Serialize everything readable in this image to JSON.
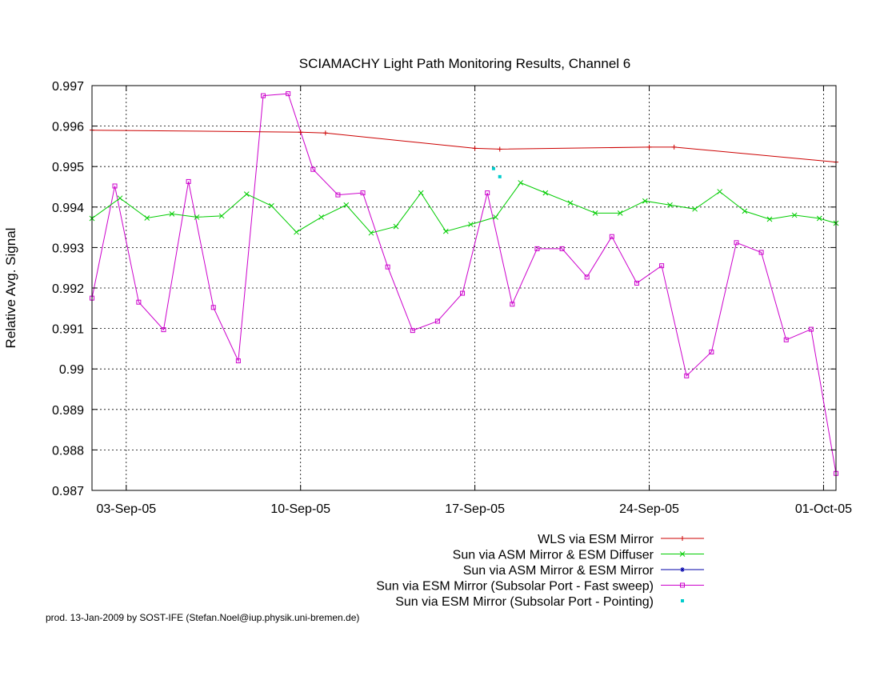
{
  "chart_data": {
    "type": "line",
    "title": "SCIAMACHY Light Path Monitoring Results, Channel 6",
    "ylabel": "Relative Avg. Signal",
    "xlabel": "",
    "ylim": [
      0.987,
      0.997
    ],
    "xlim": [
      "2005-09-01 15:00",
      "2005-10-01 12:00"
    ],
    "grid": true,
    "legend_placement": "below plot, right-aligned",
    "y_ticks": [
      "0.987",
      "0.988",
      "0.989",
      "0.99",
      "0.991",
      "0.992",
      "0.993",
      "0.994",
      "0.995",
      "0.996",
      "0.997"
    ],
    "x_ticks": [
      {
        "value": "2005-09-03",
        "label": "03-Sep-05"
      },
      {
        "value": "2005-09-10",
        "label": "10-Sep-05"
      },
      {
        "value": "2005-09-17",
        "label": "17-Sep-05"
      },
      {
        "value": "2005-09-24",
        "label": "24-Sep-05"
      },
      {
        "value": "2005-10-01",
        "label": "01-Oct-05"
      }
    ],
    "series": [
      {
        "name": "WLS via ESM Mirror",
        "color": "#cc0000",
        "marker": "plus",
        "x": [
          "2005-09-01 15:00",
          "2005-09-10 00:00",
          "2005-09-11 00:00",
          "2005-09-17 00:00",
          "2005-09-18 00:00",
          "2005-09-24 00:00",
          "2005-09-25 00:00",
          "2005-10-01 12:00"
        ],
        "values": [
          0.9959,
          0.99585,
          0.99583,
          0.99545,
          0.99543,
          0.99548,
          0.99548,
          0.99511
        ]
      },
      {
        "name": "Sun via ASM Mirror & ESM Diffuser",
        "color": "#00cc00",
        "marker": "x",
        "x": [
          "2005-09-01 15:00",
          "2005-09-02 18:00",
          "2005-09-03 20:00",
          "2005-09-04 20:00",
          "2005-09-05 20:00",
          "2005-09-06 20:00",
          "2005-09-07 20:00",
          "2005-09-08 20:00",
          "2005-09-09 20:00",
          "2005-09-10 20:00",
          "2005-09-11 20:00",
          "2005-09-12 20:00",
          "2005-09-13 20:00",
          "2005-09-14 20:00",
          "2005-09-15 20:00",
          "2005-09-16 20:00",
          "2005-09-17 20:00",
          "2005-09-18 20:00",
          "2005-09-19 20:00",
          "2005-09-20 20:00",
          "2005-09-21 20:00",
          "2005-09-22 20:00",
          "2005-09-23 20:00",
          "2005-09-24 20:00",
          "2005-09-25 20:00",
          "2005-09-26 20:00",
          "2005-09-27 20:00",
          "2005-09-28 20:00",
          "2005-09-29 20:00",
          "2005-09-30 20:00",
          "2005-10-01 12:00"
        ],
        "values": [
          0.99372,
          0.99422,
          0.99373,
          0.99383,
          0.99375,
          0.99378,
          0.99432,
          0.99403,
          0.99338,
          0.99375,
          0.99405,
          0.99336,
          0.99352,
          0.99435,
          0.9934,
          0.99357,
          0.99375,
          0.9946,
          0.99435,
          0.9941,
          0.99385,
          0.99385,
          0.99415,
          0.99405,
          0.99395,
          0.99438,
          0.9939,
          0.9937,
          0.9938,
          0.99372,
          0.9936
        ]
      },
      {
        "name": "Sun via ASM Mirror & ESM Mirror",
        "color": "#0000aa",
        "marker": "star",
        "x": [],
        "values": []
      },
      {
        "name": "Sun via ESM Mirror (Subsolar Port - Fast sweep)",
        "color": "#cc00cc",
        "marker": "square",
        "x": [
          "2005-09-01 15:00",
          "2005-09-02 13:00",
          "2005-09-03 12:00",
          "2005-09-04 12:00",
          "2005-09-05 12:00",
          "2005-09-06 12:00",
          "2005-09-07 12:00",
          "2005-09-08 12:00",
          "2005-09-09 12:00",
          "2005-09-10 12:00",
          "2005-09-11 12:00",
          "2005-09-12 12:00",
          "2005-09-13 12:00",
          "2005-09-14 12:00",
          "2005-09-15 12:00",
          "2005-09-16 12:00",
          "2005-09-17 12:00",
          "2005-09-18 12:00",
          "2005-09-19 12:00",
          "2005-09-20 12:00",
          "2005-09-21 12:00",
          "2005-09-22 12:00",
          "2005-09-23 12:00",
          "2005-09-24 12:00",
          "2005-09-25 12:00",
          "2005-09-26 12:00",
          "2005-09-27 12:00",
          "2005-09-28 12:00",
          "2005-09-29 12:00",
          "2005-09-30 12:00",
          "2005-10-01 12:00"
        ],
        "values": [
          0.99175,
          0.99452,
          0.99165,
          0.99097,
          0.99463,
          0.99152,
          0.9902,
          0.99675,
          0.9968,
          0.99493,
          0.9943,
          0.99435,
          0.99252,
          0.99095,
          0.99118,
          0.99187,
          0.99435,
          0.9916,
          0.99297,
          0.99297,
          0.99227,
          0.99327,
          0.99212,
          0.99255,
          0.98983,
          0.99042,
          0.99312,
          0.99288,
          0.99072,
          0.99098,
          0.98742
        ]
      },
      {
        "name": "Sun via ESM Mirror (Subsolar Port - Pointing)",
        "color": "#00cccc",
        "marker": "dot",
        "x": [
          "2005-09-17 18:00",
          "2005-09-18 00:00"
        ],
        "values": [
          0.99495,
          0.99475
        ]
      }
    ]
  },
  "footer": "prod. 13-Jan-2009 by SOST-IFE (Stefan.Noel@iup.physik.uni-bremen.de)"
}
